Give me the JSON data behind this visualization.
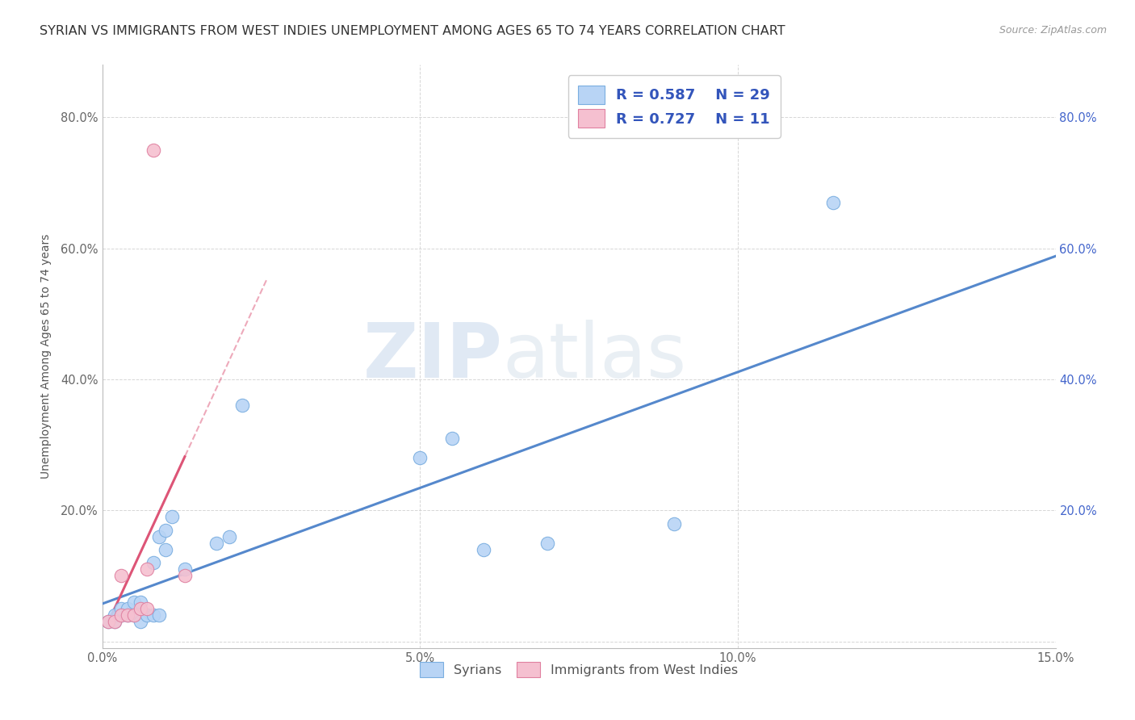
{
  "title": "SYRIAN VS IMMIGRANTS FROM WEST INDIES UNEMPLOYMENT AMONG AGES 65 TO 74 YEARS CORRELATION CHART",
  "source": "Source: ZipAtlas.com",
  "ylabel": "Unemployment Among Ages 65 to 74 years",
  "xlim": [
    0.0,
    0.15
  ],
  "ylim": [
    -0.01,
    0.88
  ],
  "xticks": [
    0.0,
    0.05,
    0.1,
    0.15
  ],
  "xticklabels": [
    "0.0%",
    "5.0%",
    "10.0%",
    "15.0%"
  ],
  "yticks": [
    0.0,
    0.2,
    0.4,
    0.6,
    0.8
  ],
  "yticklabels": [
    "",
    "20.0%",
    "40.0%",
    "60.0%",
    "80.0%"
  ],
  "right_yticklabels": [
    "",
    "20.0%",
    "40.0%",
    "60.0%",
    "80.0%"
  ],
  "watermark_zip": "ZIP",
  "watermark_atlas": "atlas",
  "legend_R1": "R = 0.587",
  "legend_N1": "N = 29",
  "legend_R2": "R = 0.727",
  "legend_N2": "N = 11",
  "syrians_x": [
    0.001,
    0.002,
    0.002,
    0.003,
    0.003,
    0.004,
    0.004,
    0.005,
    0.005,
    0.006,
    0.006,
    0.007,
    0.008,
    0.008,
    0.009,
    0.009,
    0.01,
    0.01,
    0.011,
    0.013,
    0.018,
    0.02,
    0.022,
    0.05,
    0.055,
    0.06,
    0.07,
    0.09,
    0.115
  ],
  "syrians_y": [
    0.03,
    0.03,
    0.04,
    0.04,
    0.05,
    0.04,
    0.05,
    0.04,
    0.06,
    0.03,
    0.06,
    0.04,
    0.04,
    0.12,
    0.04,
    0.16,
    0.14,
    0.17,
    0.19,
    0.11,
    0.15,
    0.16,
    0.36,
    0.28,
    0.31,
    0.14,
    0.15,
    0.18,
    0.67
  ],
  "westindies_x": [
    0.001,
    0.002,
    0.003,
    0.003,
    0.004,
    0.005,
    0.006,
    0.007,
    0.007,
    0.008,
    0.013
  ],
  "westindies_y": [
    0.03,
    0.03,
    0.04,
    0.1,
    0.04,
    0.04,
    0.05,
    0.05,
    0.11,
    0.75,
    0.1
  ],
  "color_syrians_fill": "#b8d4f5",
  "color_syrians_edge": "#7aaee0",
  "color_westindies_fill": "#f5c0d0",
  "color_westindies_edge": "#e080a0",
  "color_line_syrians": "#5588cc",
  "color_line_westindies": "#dd5577",
  "color_legend_text": "#3355bb",
  "color_right_ytick": "#4466cc",
  "background_color": "#ffffff",
  "grid_color": "#cccccc",
  "title_fontsize": 11.5,
  "source_fontsize": 9,
  "axis_label_fontsize": 10,
  "tick_fontsize": 10.5
}
